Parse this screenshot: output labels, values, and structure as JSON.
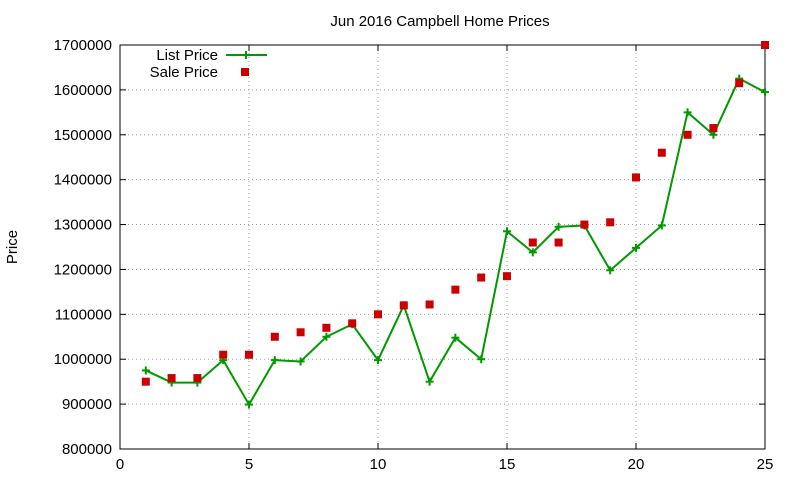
{
  "chart_data": {
    "type": "line",
    "title": "Jun 2016 Campbell Home Prices",
    "xlabel": "",
    "ylabel": "Price",
    "xlim": [
      0,
      25
    ],
    "ylim": [
      800000,
      1700000
    ],
    "xticks": [
      0,
      5,
      10,
      15,
      20,
      25
    ],
    "yticks": [
      800000,
      900000,
      1000000,
      1100000,
      1200000,
      1300000,
      1400000,
      1500000,
      1600000,
      1700000
    ],
    "grid": true,
    "legend_position": "top-left",
    "series": [
      {
        "name": "List Price",
        "type": "line-with-plus-markers",
        "color": "#009900",
        "x": [
          1,
          2,
          3,
          4,
          5,
          6,
          7,
          8,
          9,
          10,
          11,
          12,
          13,
          14,
          15,
          16,
          17,
          18,
          19,
          20,
          21,
          22,
          23,
          24,
          25
        ],
        "y": [
          975000,
          948000,
          948000,
          998000,
          899000,
          998000,
          995000,
          1050000,
          1078000,
          998000,
          1120000,
          950000,
          1048000,
          1000000,
          1285000,
          1238000,
          1295000,
          1298000,
          1198000,
          1248000,
          1298000,
          1550000,
          1500000,
          1625000,
          1595000
        ]
      },
      {
        "name": "Sale Price",
        "type": "scatter-square",
        "color": "#cc0000",
        "x": [
          1,
          2,
          3,
          4,
          5,
          6,
          7,
          8,
          9,
          10,
          11,
          12,
          13,
          14,
          15,
          16,
          17,
          18,
          19,
          20,
          21,
          22,
          23,
          24,
          25
        ],
        "y": [
          950000,
          958000,
          958000,
          1010000,
          1010000,
          1050000,
          1060000,
          1070000,
          1080000,
          1100000,
          1120000,
          1122000,
          1155000,
          1182000,
          1185000,
          1260000,
          1260000,
          1300000,
          1305000,
          1405000,
          1460000,
          1500000,
          1515000,
          1615000,
          1700000
        ]
      }
    ]
  }
}
